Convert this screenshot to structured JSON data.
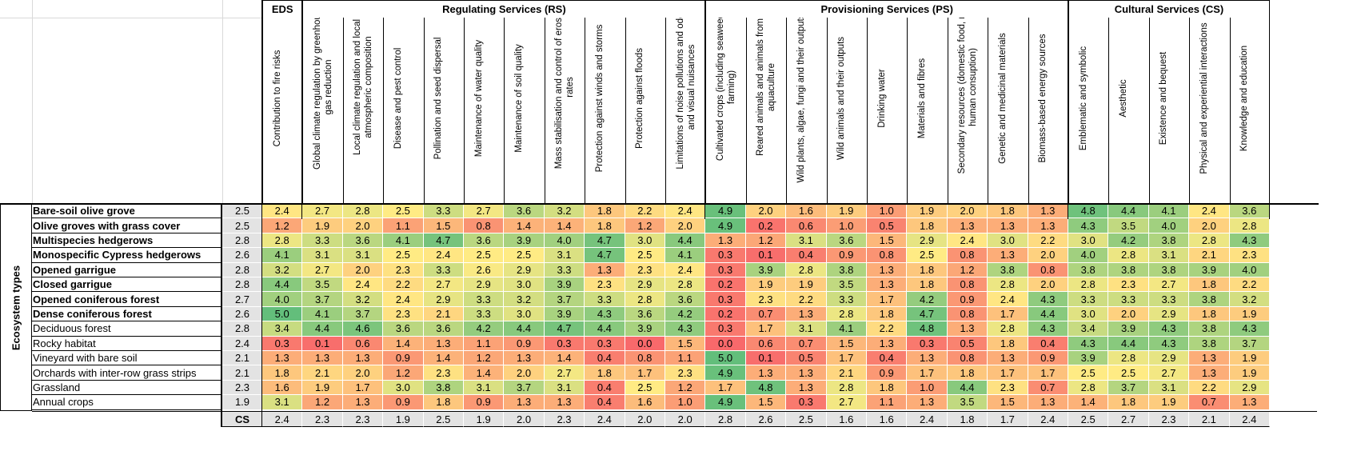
{
  "groups": [
    {
      "label": "EDS",
      "span": 1
    },
    {
      "label": "Regulating Services (RS)",
      "span": 10
    },
    {
      "label": "Provisioning Services (PS)",
      "span": 9
    },
    {
      "label": "Cultural Services (CS)",
      "span": 5
    }
  ],
  "columns": [
    {
      "code": "DS1",
      "label": "Contribution to fire risks"
    },
    {
      "code": "RS1",
      "label": "Global climate regulation by greenhouse gas reduction"
    },
    {
      "code": "RS2",
      "label": "Local climate regulation and local atmospheric composition"
    },
    {
      "code": "RS3",
      "label": "Disease and pest control"
    },
    {
      "code": "RS4",
      "label": "Pollination and seed dispersal"
    },
    {
      "code": "RS5",
      "label": "Maintenance of water quality"
    },
    {
      "code": "RS6",
      "label": "Maintenance of soil quality"
    },
    {
      "code": "RS7",
      "label": "Mass stabilisation and control of erosion rates"
    },
    {
      "code": "RS8",
      "label": "Protection against winds and storms"
    },
    {
      "code": "RS9",
      "label": "Protection against floods"
    },
    {
      "code": "RS10",
      "label": "Limitations of noise pollutions and odour and visual nuisances"
    },
    {
      "code": "PS1",
      "label": "Cultivated crops (including seaweed farming)"
    },
    {
      "code": "PS2",
      "label": "Reared animals and animals from aquaculture"
    },
    {
      "code": "PS3",
      "label": "Wild plants, algae, fungi and their outputs"
    },
    {
      "code": "PS4",
      "label": "Wild animals and their outputs"
    },
    {
      "code": "PS5",
      "label": "Drinking water"
    },
    {
      "code": "PS6",
      "label": "Materials and fibres"
    },
    {
      "code": "PS7",
      "label": "Secondary resources (domestic food, non-human consuption)"
    },
    {
      "code": "PS8",
      "label": "Genetic and medicinal materials"
    },
    {
      "code": "PS9",
      "label": "Biomass-based energy sources"
    },
    {
      "code": "CS1",
      "label": "Emblematic and symbolic"
    },
    {
      "code": "CS2",
      "label": "Aesthetic"
    },
    {
      "code": "CS3",
      "label": "Existence and bequest"
    },
    {
      "code": "CS4",
      "label": "Physical and experiential interactions"
    },
    {
      "code": "CS5",
      "label": "Knowledge and education"
    }
  ],
  "axis_label": "Ecosystem types",
  "summary_label": "CS",
  "rows": [
    {
      "name": "Bare-soil olive grove",
      "bold": true,
      "eds": "2.5",
      "values": [
        "2.4",
        "2.7",
        "2.8",
        "2.5",
        "3.3",
        "2.7",
        "3.6",
        "3.2",
        "1.8",
        "2.2",
        "2.4",
        "4.9",
        "2.0",
        "1.6",
        "1.9",
        "1.0",
        "1.9",
        "2.0",
        "1.8",
        "1.3",
        "4.8",
        "4.4",
        "4.1",
        "2.4",
        "3.6"
      ]
    },
    {
      "name": "Olive groves with grass cover",
      "bold": true,
      "eds": "2.5",
      "values": [
        "1.2",
        "1.9",
        "2.0",
        "1.1",
        "1.5",
        "0.8",
        "1.4",
        "1.4",
        "1.8",
        "1.2",
        "2.0",
        "4.9",
        "0.2",
        "0.6",
        "1.0",
        "0.5",
        "1.8",
        "1.3",
        "1.3",
        "1.3",
        "4.3",
        "3.5",
        "4.0",
        "2.0",
        "2.8"
      ]
    },
    {
      "name": "Multispecies hedgerows",
      "bold": true,
      "eds": "2.8",
      "values": [
        "2.8",
        "3.3",
        "3.6",
        "4.1",
        "4.7",
        "3.6",
        "3.9",
        "4.0",
        "4.7",
        "3.0",
        "4.4",
        "1.3",
        "1.2",
        "3.1",
        "3.6",
        "1.5",
        "2.9",
        "2.4",
        "3.0",
        "2.2",
        "3.0",
        "4.2",
        "3.8",
        "2.8",
        "4.3"
      ]
    },
    {
      "name": "Monospecific Cypress hedgerows",
      "bold": true,
      "eds": "2.6",
      "values": [
        "4.1",
        "3.1",
        "3.1",
        "2.5",
        "2.4",
        "2.5",
        "2.5",
        "3.1",
        "4.7",
        "2.5",
        "4.1",
        "0.3",
        "0.1",
        "0.4",
        "0.9",
        "0.8",
        "2.5",
        "0.8",
        "1.3",
        "2.0",
        "4.0",
        "2.8",
        "3.1",
        "2.1",
        "2.3"
      ]
    },
    {
      "name": "Opened garrigue",
      "bold": true,
      "eds": "2.8",
      "values": [
        "3.2",
        "2.7",
        "2.0",
        "2.3",
        "3.3",
        "2.6",
        "2.9",
        "3.3",
        "1.3",
        "2.3",
        "2.4",
        "0.3",
        "3.9",
        "2.8",
        "3.8",
        "1.3",
        "1.8",
        "1.2",
        "3.8",
        "0.8",
        "3.8",
        "3.8",
        "3.8",
        "3.9",
        "4.0"
      ]
    },
    {
      "name": "Closed garrigue",
      "bold": true,
      "eds": "2.8",
      "values": [
        "4.4",
        "3.5",
        "2.4",
        "2.2",
        "2.7",
        "2.9",
        "3.0",
        "3.9",
        "2.3",
        "2.9",
        "2.8",
        "0.2",
        "1.9",
        "1.9",
        "3.5",
        "1.3",
        "1.8",
        "0.8",
        "2.8",
        "2.0",
        "2.8",
        "2.3",
        "2.7",
        "1.8",
        "2.2"
      ]
    },
    {
      "name": "Opened coniferous forest",
      "bold": true,
      "eds": "2.7",
      "values": [
        "4.0",
        "3.7",
        "3.2",
        "2.4",
        "2.9",
        "3.3",
        "3.2",
        "3.7",
        "3.3",
        "2.8",
        "3.6",
        "0.3",
        "2.3",
        "2.2",
        "3.3",
        "1.7",
        "4.2",
        "0.9",
        "2.4",
        "4.3",
        "3.3",
        "3.3",
        "3.3",
        "3.8",
        "3.2"
      ]
    },
    {
      "name": "Dense coniferous forest",
      "bold": true,
      "eds": "2.6",
      "values": [
        "5.0",
        "4.1",
        "3.7",
        "2.3",
        "2.1",
        "3.3",
        "3.0",
        "3.9",
        "4.3",
        "3.6",
        "4.2",
        "0.2",
        "0.7",
        "1.3",
        "2.8",
        "1.8",
        "4.7",
        "0.8",
        "1.7",
        "4.4",
        "3.0",
        "2.0",
        "2.9",
        "1.8",
        "1.9"
      ]
    },
    {
      "name": "Deciduous forest",
      "bold": false,
      "eds": "2.8",
      "values": [
        "3.4",
        "4.4",
        "4.6",
        "3.6",
        "3.6",
        "4.2",
        "4.4",
        "4.7",
        "4.4",
        "3.9",
        "4.3",
        "0.3",
        "1.7",
        "3.1",
        "4.1",
        "2.2",
        "4.8",
        "1.3",
        "2.8",
        "4.3",
        "3.4",
        "3.9",
        "4.3",
        "3.8",
        "4.3"
      ]
    },
    {
      "name": "Rocky habitat",
      "bold": false,
      "eds": "2.4",
      "values": [
        "0.3",
        "0.1",
        "0.6",
        "1.4",
        "1.3",
        "1.1",
        "0.9",
        "0.3",
        "0.3",
        "0.0",
        "1.5",
        "0.0",
        "0.6",
        "0.7",
        "1.5",
        "1.3",
        "0.3",
        "0.5",
        "1.8",
        "0.4",
        "4.3",
        "4.4",
        "4.3",
        "3.8",
        "3.7"
      ]
    },
    {
      "name": "Vineyard with bare soil",
      "bold": false,
      "eds": "2.1",
      "values": [
        "1.3",
        "1.3",
        "1.3",
        "0.9",
        "1.4",
        "1.2",
        "1.3",
        "1.4",
        "0.4",
        "0.8",
        "1.1",
        "5.0",
        "0.1",
        "0.5",
        "1.7",
        "0.4",
        "1.3",
        "0.8",
        "1.3",
        "0.9",
        "3.9",
        "2.8",
        "2.9",
        "1.3",
        "1.9"
      ]
    },
    {
      "name": "Orchards with inter-row grass strips",
      "bold": false,
      "eds": "2.1",
      "values": [
        "1.8",
        "2.1",
        "2.0",
        "1.2",
        "2.3",
        "1.4",
        "2.0",
        "2.7",
        "1.8",
        "1.7",
        "2.3",
        "4.9",
        "1.3",
        "1.3",
        "2.1",
        "0.9",
        "1.7",
        "1.8",
        "1.7",
        "1.7",
        "2.5",
        "2.5",
        "2.7",
        "1.3",
        "1.9"
      ]
    },
    {
      "name": "Grassland",
      "bold": false,
      "eds": "2.3",
      "values": [
        "1.6",
        "1.9",
        "1.7",
        "3.0",
        "3.8",
        "3.1",
        "3.7",
        "3.1",
        "0.4",
        "2.5",
        "1.2",
        "1.7",
        "4.8",
        "1.3",
        "2.8",
        "1.8",
        "1.0",
        "4.4",
        "2.3",
        "0.7",
        "2.8",
        "3.7",
        "3.1",
        "2.2",
        "2.9"
      ]
    },
    {
      "name": "Annual crops",
      "bold": false,
      "eds": "1.9",
      "values": [
        "3.1",
        "1.2",
        "1.3",
        "0.9",
        "1.8",
        "0.9",
        "1.3",
        "1.3",
        "0.4",
        "1.6",
        "1.0",
        "4.9",
        "1.5",
        "0.3",
        "2.7",
        "1.1",
        "1.3",
        "3.5",
        "1.5",
        "1.3",
        "1.4",
        "1.8",
        "1.9",
        "0.7",
        "1.3"
      ]
    }
  ],
  "summary_row": [
    "2.4",
    "2.3",
    "2.3",
    "1.9",
    "2.5",
    "1.9",
    "2.0",
    "2.3",
    "2.4",
    "2.0",
    "2.0",
    "2.8",
    "2.6",
    "2.5",
    "1.6",
    "1.6",
    "2.4",
    "1.8",
    "1.7",
    "2.4",
    "2.5",
    "2.7",
    "2.3",
    "2.1",
    "2.4"
  ],
  "scale_colors": {
    "low": "#f8696b",
    "mid": "#ffeb84",
    "high": "#63be7b"
  }
}
